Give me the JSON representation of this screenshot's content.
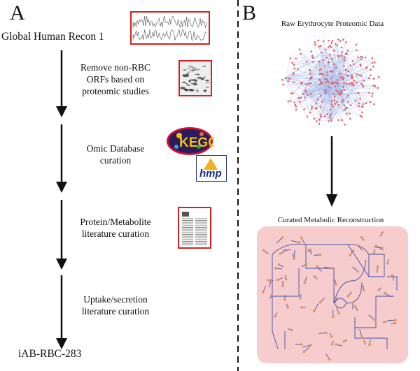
{
  "panel_a": {
    "letter": "A",
    "start_label": "Global Human Recon 1",
    "steps": [
      {
        "lines": [
          "Remove non-RBC",
          "ORFs based on",
          "proteomic studies"
        ]
      },
      {
        "lines": [
          "Omic Database",
          "curation"
        ]
      },
      {
        "lines": [
          "Protein/Metabolite",
          "literature curation"
        ]
      },
      {
        "lines": [
          "Uptake/secretion",
          "literature curation"
        ]
      }
    ],
    "end_label": "iAB-RBC-283",
    "logos": {
      "kegg": "KEGG",
      "hmp": "hmp"
    }
  },
  "panel_b": {
    "letter": "B",
    "top_caption": "Raw Erythrocyte Proteomic Data",
    "bottom_caption": "Curated Metabolic Reconstruction"
  },
  "colors": {
    "arrow": "#111111",
    "thumb_border": "#d62020",
    "network_node": "#e06060",
    "network_edge": "#5a7ad8",
    "recon_bg": "#f7cccc",
    "recon_node": "#e8935a",
    "recon_edge": "#3e4fa8"
  }
}
